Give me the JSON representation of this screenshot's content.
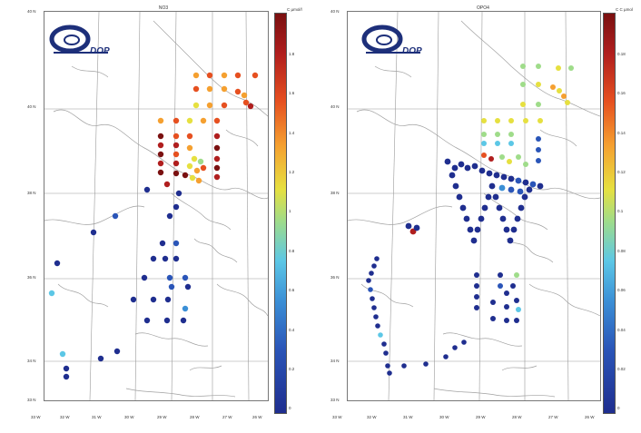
{
  "panels": [
    {
      "title": "NO3",
      "unit": "C µmol/l",
      "logo_text": "DOP",
      "lat_labels": [
        "40 N",
        "40 N",
        "38 N",
        "36 N",
        "34 N",
        "33 N"
      ],
      "lon_labels": [
        "33 W",
        "32 W",
        "31 W",
        "30 W",
        "29 W",
        "28 W",
        "27 W",
        "26 W"
      ],
      "cbar_labels": [
        "1.8",
        "1.6",
        "1.4",
        "1.2",
        "1",
        "0.8",
        "0.6",
        "0.4",
        "0.2",
        "0"
      ]
    },
    {
      "title": "OPO4",
      "unit": "C C µmol",
      "logo_text": "DOP",
      "lat_labels": [
        "40 N",
        "40 N",
        "38 N",
        "36 N",
        "34 N",
        "33 N"
      ],
      "lon_labels": [
        "33 W",
        "32 W",
        "31 W",
        "30 W",
        "29 W",
        "28 W",
        "27 W",
        "26 W"
      ],
      "cbar_labels": [
        "0.18",
        "0.16",
        "0.14",
        "0.12",
        "0.1",
        "0.08",
        "0.06",
        "0.04",
        "0.02",
        "0"
      ]
    }
  ],
  "colors": {
    "colormap": [
      "#1f2e8f",
      "#2a55b8",
      "#3b8fd6",
      "#5cc7e6",
      "#9fdc8a",
      "#e6e040",
      "#f5a030",
      "#e65020",
      "#b01e1e",
      "#7a1010"
    ],
    "grid": "#9a9a9a",
    "coast": "#a0a0a0",
    "logo_blue": "#1d2f7a"
  }
}
